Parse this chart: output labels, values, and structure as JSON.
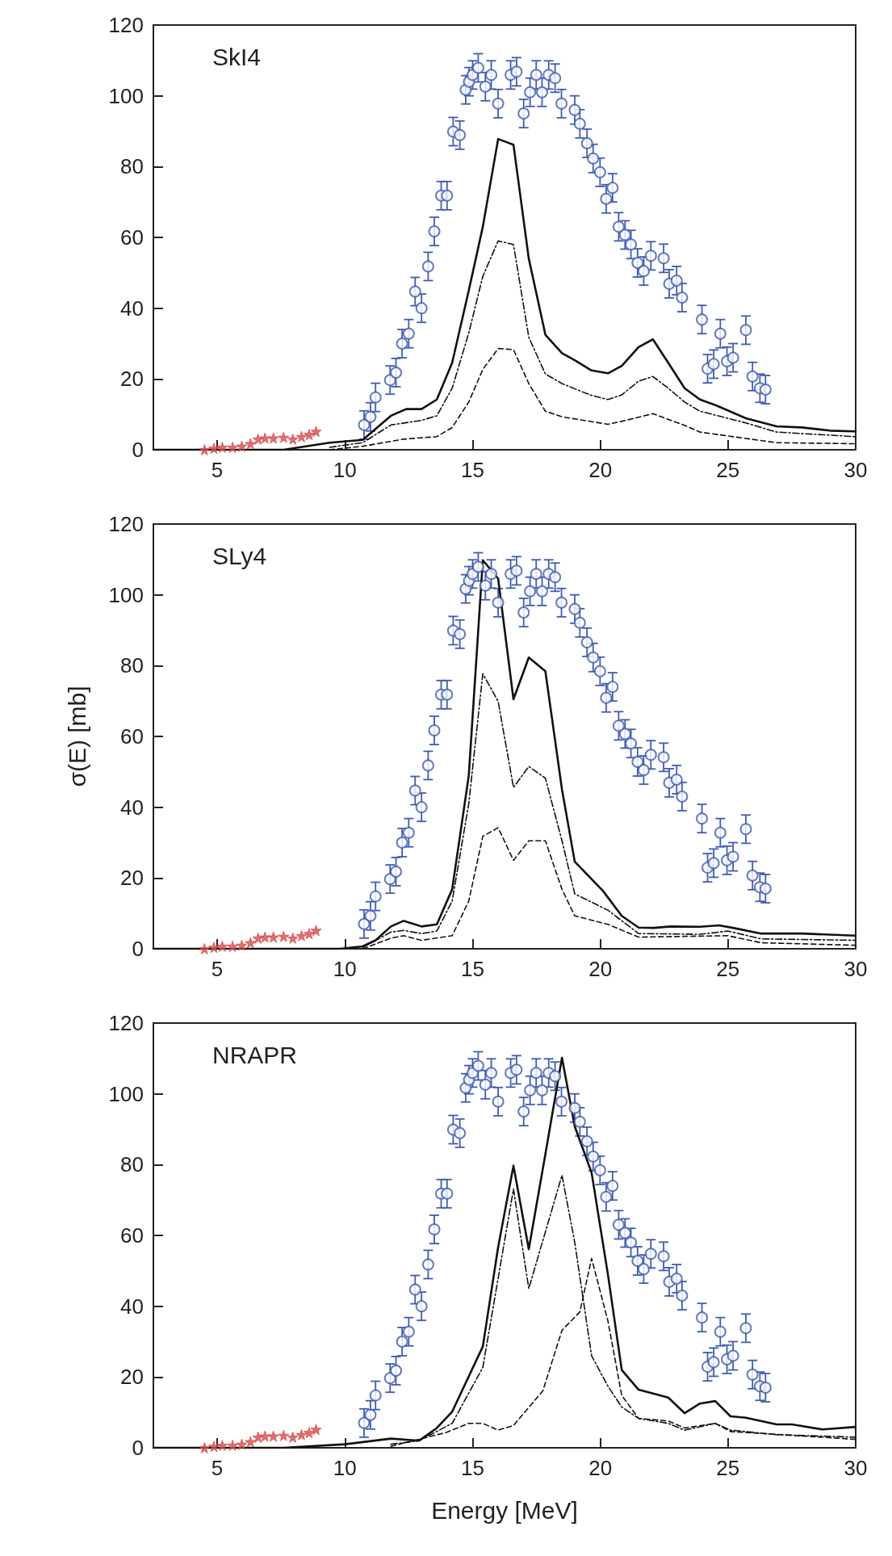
{
  "chart_data": [
    {
      "type": "line",
      "title": "SkI4",
      "xlim": [
        2.5,
        30
      ],
      "xticks": [
        5,
        10,
        15,
        20,
        25,
        30
      ],
      "ylim": [
        0,
        120
      ],
      "yticks": [
        0,
        20,
        40,
        60,
        80,
        100,
        120
      ],
      "grid": false,
      "series": [
        {
          "type": "scatter",
          "marker": "circle",
          "color": "#3f5bb5",
          "x": [
            10.75,
            11.0,
            11.2,
            11.77,
            12.0,
            12.24,
            12.5,
            12.75,
            13.0,
            13.26,
            13.5,
            13.77,
            14.0,
            14.24,
            14.5,
            14.73,
            14.86,
            15.0,
            15.22,
            15.5,
            15.73,
            16.0,
            16.49,
            16.72,
            17.0,
            17.25,
            17.49,
            17.72,
            17.98,
            18.23,
            18.48,
            19.0,
            19.2,
            19.48,
            19.72,
            19.99,
            20.23,
            20.48,
            20.72,
            20.97,
            21.2,
            21.46,
            21.7,
            21.98,
            22.48,
            22.7,
            22.99,
            23.2,
            23.98,
            24.2,
            24.44,
            24.7,
            24.96,
            25.2,
            25.7,
            25.96,
            26.25,
            26.47
          ],
          "values": [
            7,
            9.3,
            14.8,
            19.7,
            21.8,
            30,
            32.8,
            44.7,
            40,
            51.8,
            61.7,
            71.8,
            71.8,
            89.9,
            88.9,
            101.7,
            104,
            105.9,
            107.9,
            102.6,
            105.9,
            97.8,
            105.9,
            106.8,
            95,
            101,
            105.9,
            101,
            105.9,
            105,
            97.8,
            96,
            92.1,
            86.6,
            82.3,
            78.4,
            70.9,
            74,
            63,
            60.7,
            58,
            52.8,
            50.5,
            54.8,
            54.1,
            46.9,
            47.8,
            43,
            36.8,
            22.9,
            24.2,
            32.8,
            25,
            26,
            33.8,
            20.7,
            17.4,
            17
          ],
          "errors": [
            4,
            4,
            4,
            4,
            4,
            4,
            4,
            4,
            4,
            4,
            4,
            4,
            4,
            4,
            4,
            4,
            4,
            4,
            4,
            4,
            4,
            4,
            4,
            4,
            4,
            4,
            4,
            4,
            4,
            4,
            4,
            4,
            4,
            4,
            4,
            4,
            4,
            4,
            4,
            4,
            4,
            4,
            4,
            4,
            4,
            4,
            4,
            4,
            4,
            4,
            4,
            4,
            4,
            4,
            4,
            4,
            4,
            4
          ]
        },
        {
          "type": "scatter",
          "marker": "star",
          "color": "#d94a4a",
          "x": [
            4.5,
            4.87,
            5.2,
            5.6,
            5.96,
            6.3,
            6.6,
            6.87,
            7.2,
            7.6,
            7.96,
            8.3,
            8.6,
            8.87
          ],
          "values": [
            0,
            0.4,
            0.7,
            0.7,
            1,
            1.7,
            3,
            3.3,
            3.3,
            3.5,
            3,
            3.7,
            4.3,
            5.2
          ]
        },
        {
          "type": "line",
          "marker": "none",
          "line_style": "solid",
          "color": "#111111",
          "x": [
            2.5,
            7.6,
            9.4,
            10.7,
            11.8,
            12.4,
            13.0,
            13.6,
            14.2,
            14.85,
            15.4,
            16.0,
            16.6,
            17.2,
            17.85,
            18.5,
            19.0,
            19.66,
            20.3,
            20.84,
            21.5,
            22.06,
            22.66,
            23.3,
            23.9,
            24.55,
            25.7,
            26.9,
            27.9,
            29,
            30
          ],
          "values": [
            0,
            0,
            2,
            2.8,
            9.6,
            11.5,
            11.5,
            14.2,
            24.6,
            45,
            63,
            87.8,
            86.2,
            54,
            32.5,
            27.3,
            25.3,
            22.4,
            21.6,
            23.7,
            29,
            31.2,
            24.6,
            17.4,
            14.2,
            12.5,
            8.9,
            6.6,
            6.3,
            5.4,
            5.2
          ]
        },
        {
          "type": "line",
          "marker": "none",
          "line_style": "dotted",
          "color": "#111111",
          "x": [
            9.4,
            10.7,
            11.8,
            13.0,
            13.6,
            14.2,
            14.85,
            15.4,
            16.0,
            16.6,
            17.2,
            17.85,
            18.5,
            19.6,
            20.3,
            20.84,
            21.5,
            22.06,
            22.66,
            23.3,
            23.9,
            25.7,
            26.9,
            30
          ],
          "values": [
            0.7,
            2,
            7,
            8.3,
            9.6,
            17.4,
            33,
            49,
            59,
            58,
            31.8,
            21.4,
            18.7,
            15.5,
            14.2,
            15.5,
            19.4,
            20.7,
            17.4,
            13.5,
            10.9,
            7.6,
            5,
            3.7
          ]
        },
        {
          "type": "line",
          "marker": "none",
          "line_style": "dashed",
          "color": "#111111",
          "x": [
            9.4,
            10.7,
            12.3,
            13.6,
            14.2,
            14.85,
            15.4,
            16.0,
            16.6,
            17.2,
            17.85,
            18.5,
            20.3,
            21.0,
            22.06,
            23.3,
            23.9,
            26.9,
            30
          ],
          "values": [
            0,
            1,
            3,
            3.7,
            6.3,
            13.5,
            22.7,
            28.6,
            28.3,
            18.7,
            10.9,
            9.3,
            7.2,
            8.3,
            10.2,
            6.9,
            5,
            2,
            1.7
          ]
        }
      ]
    },
    {
      "type": "line",
      "title": "SLy4",
      "ylabel": "σ(E) [mb]",
      "xlim": [
        2.5,
        30
      ],
      "xticks": [
        5,
        10,
        15,
        20,
        25,
        30
      ],
      "ylim": [
        0,
        120
      ],
      "yticks": [
        0,
        20,
        40,
        60,
        80,
        100,
        120
      ],
      "grid": false,
      "series": [
        {
          "type": "scatter",
          "marker": "circle",
          "color": "#3f5bb5",
          "x": [
            10.75,
            11.0,
            11.2,
            11.77,
            12.0,
            12.24,
            12.5,
            12.75,
            13.0,
            13.26,
            13.5,
            13.77,
            14.0,
            14.24,
            14.5,
            14.73,
            14.86,
            15.0,
            15.22,
            15.5,
            15.73,
            16.0,
            16.49,
            16.72,
            17.0,
            17.25,
            17.49,
            17.72,
            17.98,
            18.23,
            18.48,
            19.0,
            19.2,
            19.48,
            19.72,
            19.99,
            20.23,
            20.48,
            20.72,
            20.97,
            21.2,
            21.46,
            21.7,
            21.98,
            22.48,
            22.7,
            22.99,
            23.2,
            23.98,
            24.2,
            24.44,
            24.7,
            24.96,
            25.2,
            25.7,
            25.96,
            26.25,
            26.47
          ],
          "values": [
            7,
            9.3,
            14.8,
            19.7,
            21.8,
            30,
            32.8,
            44.7,
            40,
            51.8,
            61.7,
            71.8,
            71.8,
            89.9,
            88.9,
            101.7,
            104,
            105.9,
            107.9,
            102.6,
            105.9,
            97.8,
            105.9,
            106.8,
            95,
            101,
            105.9,
            101,
            105.9,
            105,
            97.8,
            96,
            92.1,
            86.6,
            82.3,
            78.4,
            70.9,
            74,
            63,
            60.7,
            58,
            52.8,
            50.5,
            54.8,
            54.1,
            46.9,
            47.8,
            43,
            36.8,
            22.9,
            24.2,
            32.8,
            25,
            26,
            33.8,
            20.7,
            17.4,
            17
          ],
          "errors": [
            4,
            4,
            4,
            4,
            4,
            4,
            4,
            4,
            4,
            4,
            4,
            4,
            4,
            4,
            4,
            4,
            4,
            4,
            4,
            4,
            4,
            4,
            4,
            4,
            4,
            4,
            4,
            4,
            4,
            4,
            4,
            4,
            4,
            4,
            4,
            4,
            4,
            4,
            4,
            4,
            4,
            4,
            4,
            4,
            4,
            4,
            4,
            4,
            4,
            4,
            4,
            4,
            4,
            4,
            4,
            4,
            4,
            4
          ]
        },
        {
          "type": "scatter",
          "marker": "star",
          "color": "#d94a4a",
          "x": [
            4.5,
            4.87,
            5.2,
            5.6,
            5.96,
            6.3,
            6.6,
            6.87,
            7.2,
            7.6,
            7.96,
            8.3,
            8.6,
            8.87
          ],
          "values": [
            0,
            0.4,
            0.7,
            0.7,
            1,
            1.7,
            3,
            3.3,
            3.3,
            3.5,
            3,
            3.7,
            4.3,
            5.2
          ]
        },
        {
          "type": "line",
          "marker": "none",
          "line_style": "solid",
          "color": "#111111",
          "x": [
            2.5,
            9.8,
            10.7,
            11.2,
            11.8,
            12.3,
            13.0,
            13.6,
            14.2,
            14.85,
            15.4,
            16.0,
            16.6,
            17.2,
            17.85,
            18.5,
            19.0,
            20.1,
            20.84,
            21.5,
            22.1,
            22.75,
            23.9,
            24.65,
            25.2,
            26.3,
            27.9,
            30
          ],
          "values": [
            0,
            0,
            0.7,
            2.4,
            6.3,
            7.9,
            6.3,
            6.9,
            16.8,
            48.9,
            109.8,
            104.6,
            70.5,
            82.3,
            78.4,
            45,
            24.6,
            16.4,
            9.3,
            6,
            5.9,
            6.3,
            6.2,
            6.6,
            5.9,
            4.3,
            4.3,
            3.7
          ]
        },
        {
          "type": "line",
          "marker": "none",
          "line_style": "dotted",
          "color": "#111111",
          "x": [
            10.7,
            11.8,
            12.3,
            13.0,
            13.6,
            14.2,
            14.85,
            15.4,
            16.0,
            16.6,
            17.2,
            17.85,
            18.5,
            19.0,
            20.3,
            21.5,
            23.9,
            25.0,
            26.3,
            30
          ],
          "values": [
            0.4,
            4.7,
            5.2,
            4.3,
            5,
            13.5,
            41,
            77.7,
            69.9,
            45.6,
            51.5,
            48.2,
            30.5,
            15.5,
            10.9,
            4.3,
            4.1,
            5,
            2.8,
            2.4
          ]
        },
        {
          "type": "line",
          "marker": "none",
          "line_style": "dashed",
          "color": "#111111",
          "x": [
            10.7,
            11.8,
            12.3,
            13.0,
            14.2,
            14.85,
            15.4,
            16.0,
            16.6,
            17.2,
            17.85,
            18.5,
            19.0,
            20.3,
            21.5,
            25.0,
            26.3,
            30
          ],
          "values": [
            0,
            3,
            3.7,
            2.4,
            3.7,
            13.5,
            31.8,
            34.2,
            25,
            30.5,
            30.5,
            16.8,
            9.3,
            6.9,
            3.3,
            3.7,
            1.7,
            1
          ]
        }
      ]
    },
    {
      "type": "line",
      "title": "NRAPR",
      "xlabel": "Energy [MeV]",
      "xlim": [
        2.5,
        30
      ],
      "xticks": [
        5,
        10,
        15,
        20,
        25,
        30
      ],
      "ylim": [
        0,
        120
      ],
      "yticks": [
        0,
        20,
        40,
        60,
        80,
        100,
        120
      ],
      "grid": false,
      "series": [
        {
          "type": "scatter",
          "marker": "circle",
          "color": "#3f5bb5",
          "x": [
            10.75,
            11.0,
            11.2,
            11.77,
            12.0,
            12.24,
            12.5,
            12.75,
            13.0,
            13.26,
            13.5,
            13.77,
            14.0,
            14.24,
            14.5,
            14.73,
            14.86,
            15.0,
            15.22,
            15.5,
            15.73,
            16.0,
            16.49,
            16.72,
            17.0,
            17.25,
            17.49,
            17.72,
            17.98,
            18.23,
            18.48,
            19.0,
            19.2,
            19.48,
            19.72,
            19.99,
            20.23,
            20.48,
            20.72,
            20.97,
            21.2,
            21.46,
            21.7,
            21.98,
            22.48,
            22.7,
            22.99,
            23.2,
            23.98,
            24.2,
            24.44,
            24.7,
            24.96,
            25.2,
            25.7,
            25.96,
            26.25,
            26.47
          ],
          "values": [
            7,
            9.3,
            14.8,
            19.7,
            21.8,
            30,
            32.8,
            44.7,
            40,
            51.8,
            61.7,
            71.8,
            71.8,
            89.9,
            88.9,
            101.7,
            104,
            105.9,
            107.9,
            102.6,
            105.9,
            97.8,
            105.9,
            106.8,
            95,
            101,
            105.9,
            101,
            105.9,
            105,
            97.8,
            96,
            92.1,
            86.6,
            82.3,
            78.4,
            70.9,
            74,
            63,
            60.7,
            58,
            52.8,
            50.5,
            54.8,
            54.1,
            46.9,
            47.8,
            43,
            36.8,
            22.9,
            24.2,
            32.8,
            25,
            26,
            33.8,
            20.7,
            17.4,
            17
          ],
          "errors": [
            4,
            4,
            4,
            4,
            4,
            4,
            4,
            4,
            4,
            4,
            4,
            4,
            4,
            4,
            4,
            4,
            4,
            4,
            4,
            4,
            4,
            4,
            4,
            4,
            4,
            4,
            4,
            4,
            4,
            4,
            4,
            4,
            4,
            4,
            4,
            4,
            4,
            4,
            4,
            4,
            4,
            4,
            4,
            4,
            4,
            4,
            4,
            4,
            4,
            4,
            4,
            4,
            4,
            4,
            4,
            4,
            4,
            4
          ]
        },
        {
          "type": "scatter",
          "marker": "star",
          "color": "#d94a4a",
          "x": [
            4.5,
            4.87,
            5.2,
            5.6,
            5.96,
            6.3,
            6.6,
            6.87,
            7.2,
            7.6,
            7.96,
            8.3,
            8.6,
            8.87
          ],
          "values": [
            0,
            0.4,
            0.7,
            0.7,
            1,
            1.7,
            3,
            3.3,
            3.3,
            3.5,
            3,
            3.7,
            4.3,
            5.2
          ]
        },
        {
          "type": "line",
          "marker": "none",
          "line_style": "solid",
          "color": "#111111",
          "x": [
            2.5,
            7.6,
            10.0,
            11.8,
            12.9,
            13.6,
            14.2,
            15.4,
            16.0,
            16.6,
            17.2,
            17.85,
            18.5,
            19.0,
            19.66,
            20.3,
            20.84,
            21.5,
            22.66,
            23.3,
            23.9,
            24.5,
            25.1,
            25.7,
            26.9,
            27.5,
            28.7,
            30
          ],
          "values": [
            0,
            0,
            1,
            2.6,
            2,
            5.6,
            10.2,
            28.6,
            56.7,
            79.7,
            56.1,
            83,
            110.2,
            90.8,
            77.7,
            48.9,
            22,
            16.4,
            14.2,
            9.8,
            12.5,
            13.2,
            8.9,
            8.5,
            6.6,
            6.6,
            5.2,
            5.9
          ]
        },
        {
          "type": "line",
          "marker": "none",
          "line_style": "dotted",
          "color": "#111111",
          "x": [
            11.8,
            12.9,
            14.2,
            15.4,
            16.6,
            17.2,
            18.5,
            19.0,
            19.66,
            20.3,
            20.84,
            21.5,
            22.66,
            23.3,
            24.5,
            25.1,
            26.9,
            30
          ],
          "values": [
            1,
            2,
            6.9,
            22.7,
            73.1,
            45,
            77,
            58,
            26,
            17.4,
            11.5,
            8.3,
            6.9,
            5,
            6.9,
            5,
            3.7,
            3
          ]
        },
        {
          "type": "line",
          "marker": "none",
          "line_style": "dashed",
          "color": "#111111",
          "x": [
            11.8,
            13.95,
            14.85,
            15.4,
            16.0,
            16.6,
            17.75,
            18.5,
            19.2,
            19.66,
            20.3,
            20.84,
            21.5,
            22.66,
            23.3,
            24.5,
            25.1,
            30
          ],
          "values": [
            0.4,
            4.3,
            6.9,
            6.9,
            5,
            6.3,
            16.1,
            33.2,
            38.4,
            53.5,
            35.8,
            14.8,
            8.3,
            7.6,
            5.6,
            6.9,
            4.6,
            2.4
          ]
        }
      ]
    }
  ]
}
